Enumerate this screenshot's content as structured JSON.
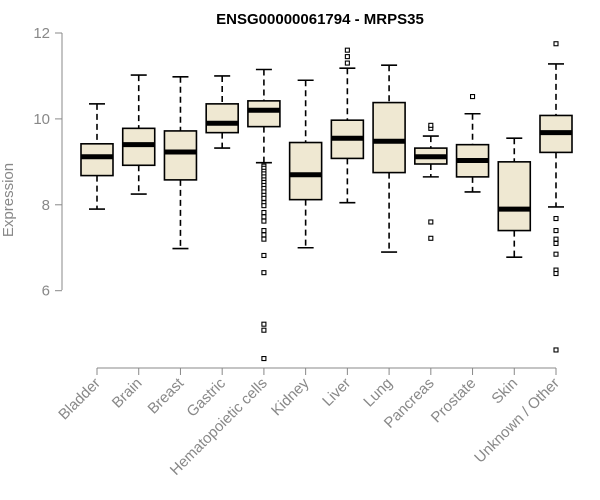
{
  "chart_data": {
    "type": "box",
    "title": "ENSG00000061794 - MRPS35",
    "xlabel": "",
    "ylabel": "Expression",
    "ylim": [
      4.2,
      12.0
    ],
    "yticks": [
      6,
      8,
      10,
      12
    ],
    "grid": false,
    "box_fill": "#efe8d2",
    "categories": [
      "Bladder",
      "Brain",
      "Breast",
      "Gastric",
      "Hematopoietic cells",
      "Kidney",
      "Liver",
      "Lung",
      "Pancreas",
      "Prostate",
      "Skin",
      "Unknown / Other"
    ],
    "boxes": [
      {
        "whisker_low": 7.9,
        "q1": 8.68,
        "median": 9.12,
        "q3": 9.42,
        "whisker_high": 10.35,
        "outliers": []
      },
      {
        "whisker_low": 8.25,
        "q1": 8.92,
        "median": 9.4,
        "q3": 9.78,
        "whisker_high": 11.02,
        "outliers": []
      },
      {
        "whisker_low": 6.98,
        "q1": 8.58,
        "median": 9.23,
        "q3": 9.72,
        "whisker_high": 10.98,
        "outliers": []
      },
      {
        "whisker_low": 9.32,
        "q1": 9.68,
        "median": 9.9,
        "q3": 10.35,
        "whisker_high": 11.0,
        "outliers": []
      },
      {
        "whisker_low": 8.98,
        "q1": 9.82,
        "median": 10.2,
        "q3": 10.42,
        "whisker_high": 11.15,
        "outliers": [
          8.9,
          8.85,
          8.78,
          8.72,
          8.65,
          8.58,
          8.52,
          8.45,
          8.38,
          8.3,
          8.22,
          8.15,
          8.05,
          7.98,
          7.82,
          7.72,
          7.62,
          7.4,
          7.3,
          7.2,
          6.82,
          6.42,
          5.22,
          5.08,
          4.42
        ]
      },
      {
        "whisker_low": 7.0,
        "q1": 8.12,
        "median": 8.7,
        "q3": 9.45,
        "whisker_high": 10.9,
        "outliers": []
      },
      {
        "whisker_low": 8.05,
        "q1": 9.08,
        "median": 9.55,
        "q3": 9.97,
        "whisker_high": 11.18,
        "outliers": [
          11.3,
          11.45,
          11.6
        ]
      },
      {
        "whisker_low": 6.9,
        "q1": 8.75,
        "median": 9.48,
        "q3": 10.38,
        "whisker_high": 11.25,
        "outliers": []
      },
      {
        "whisker_low": 8.65,
        "q1": 8.95,
        "median": 9.12,
        "q3": 9.32,
        "whisker_high": 9.6,
        "outliers": [
          9.78,
          9.85,
          7.6,
          7.22
        ]
      },
      {
        "whisker_low": 8.3,
        "q1": 8.65,
        "median": 9.03,
        "q3": 9.4,
        "whisker_high": 10.12,
        "outliers": [
          10.52
        ]
      },
      {
        "whisker_low": 6.78,
        "q1": 7.4,
        "median": 7.9,
        "q3": 9.0,
        "whisker_high": 9.55,
        "outliers": []
      },
      {
        "whisker_low": 7.95,
        "q1": 9.22,
        "median": 9.68,
        "q3": 10.08,
        "whisker_high": 11.28,
        "outliers": [
          11.75,
          7.68,
          7.4,
          7.2,
          7.1,
          6.85,
          6.48,
          6.4,
          4.62
        ]
      }
    ]
  }
}
